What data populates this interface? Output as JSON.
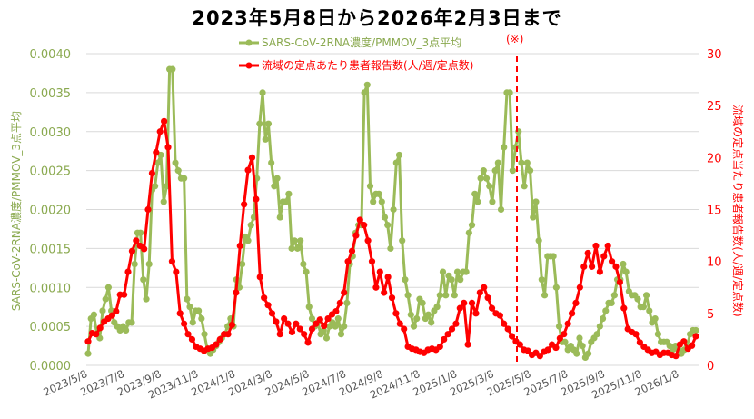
{
  "title": "2023年5月8日から2026年2月3日まで",
  "note": "(※)",
  "legend": {
    "series1": "SARS-CoV-2RNA濃度/PMMOV_3点平均",
    "series2": "流域の定点あたり患者報告数(人/週/定点数)"
  },
  "colors": {
    "series1": "#9bbb59",
    "series2": "#ff0000",
    "grid": "#d9d9d9"
  },
  "chart_data": {
    "type": "line",
    "title": "2023年5月8日から2026年2月3日まで",
    "xlabel": "",
    "ylabel": "SARS-CoV-2RNA濃度/PMMOV_3点平均",
    "ylabel_right": "流域の定点当たり患者報告数(人/週/定点数)",
    "ylim": [
      0,
      0.004
    ],
    "ylim_right": [
      0,
      30
    ],
    "yticks": [
      "0.0000",
      "0.0005",
      "0.0010",
      "0.0015",
      "0.0020",
      "0.0025",
      "0.0030",
      "0.0035",
      "0.0040"
    ],
    "yticks_right": [
      "0",
      "5",
      "10",
      "15",
      "20",
      "25",
      "30"
    ],
    "grid": true,
    "legend_position": "top",
    "x_ticks": [
      "2023/5/8",
      "2023/7/8",
      "2023/9/8",
      "2023/11/8",
      "2024/1/8",
      "2024/3/8",
      "2024/5/8",
      "2024/7/8",
      "2024/9/8",
      "2024/11/8",
      "2025/1/8",
      "2025/3/8",
      "2025/5/8",
      "2025/7/8",
      "2025/9/8",
      "2025/11/8",
      "2026/1/8"
    ],
    "vertical_marker": {
      "label": "(※)",
      "position": "2025/4 (approx.)",
      "style": "red dashed"
    },
    "series": [
      {
        "name": "SARS-CoV-2RNA濃度/PMMOV_3点平均",
        "axis": "left",
        "values": [
          0.00015,
          0.0006,
          0.00065,
          0.0004,
          0.00035,
          0.0007,
          0.00085,
          0.001,
          0.0007,
          0.00055,
          0.0005,
          0.00045,
          0.0005,
          0.00045,
          0.00055,
          0.00055,
          0.0013,
          0.0017,
          0.0017,
          0.0011,
          0.00085,
          0.0013,
          0.00225,
          0.0023,
          0.0026,
          0.0027,
          0.0021,
          0.0023,
          0.0038,
          0.0038,
          0.0026,
          0.0025,
          0.0024,
          0.0024,
          0.00085,
          0.00075,
          0.00055,
          0.0007,
          0.0007,
          0.0006,
          0.0004,
          0.0002,
          0.00015,
          0.0002,
          0.00025,
          0.0003,
          0.00035,
          0.0004,
          0.0005,
          0.0006,
          0.0005,
          0.0011,
          0.001,
          0.0013,
          0.00165,
          0.0016,
          0.0018,
          0.0019,
          0.0024,
          0.0031,
          0.0035,
          0.0029,
          0.0031,
          0.0026,
          0.0023,
          0.0024,
          0.0019,
          0.0021,
          0.0021,
          0.0022,
          0.0015,
          0.0016,
          0.0015,
          0.0016,
          0.0013,
          0.0012,
          0.00075,
          0.0006,
          0.0005,
          0.00055,
          0.0004,
          0.00045,
          0.00035,
          0.0005,
          0.00055,
          0.0005,
          0.0006,
          0.0004,
          0.0005,
          0.0008,
          0.0013,
          0.0014,
          0.0017,
          0.0018,
          0.0018,
          0.0035,
          0.0036,
          0.0023,
          0.0021,
          0.0022,
          0.0022,
          0.0021,
          0.0019,
          0.0018,
          0.0015,
          0.002,
          0.0026,
          0.0027,
          0.0016,
          0.0011,
          0.0009,
          0.00065,
          0.0005,
          0.0006,
          0.00085,
          0.0008,
          0.0006,
          0.00065,
          0.00055,
          0.0007,
          0.00075,
          0.0009,
          0.0012,
          0.0009,
          0.00115,
          0.0011,
          0.0009,
          0.0012,
          0.0011,
          0.0012,
          0.0012,
          0.0017,
          0.0018,
          0.0022,
          0.0021,
          0.0024,
          0.0025,
          0.0024,
          0.0023,
          0.0021,
          0.0025,
          0.0026,
          0.002,
          0.0028,
          0.0035,
          0.0035,
          0.0025,
          0.0028,
          0.003,
          0.0026,
          0.0023,
          0.0026,
          0.0025,
          0.0019,
          0.0021,
          0.0016,
          0.0011,
          0.0009,
          0.0014,
          0.0014,
          0.0014,
          0.001,
          0.0005,
          0.0003,
          0.0003,
          0.0002,
          0.00025,
          0.0002,
          0.00015,
          0.00035,
          0.00025,
          0.0001,
          0.00015,
          0.0003,
          0.00035,
          0.0004,
          0.0005,
          0.0006,
          0.0007,
          0.0008,
          0.0008,
          0.0009,
          0.0011,
          0.0011,
          0.0013,
          0.0012,
          0.00095,
          0.0009,
          0.0009,
          0.00085,
          0.00075,
          0.00075,
          0.0009,
          0.0007,
          0.00055,
          0.0006,
          0.0004,
          0.0003,
          0.0003,
          0.0003,
          0.00025,
          0.0002,
          0.00025,
          0.0002,
          0.00015,
          0.0002,
          0.00025,
          0.0004,
          0.00045,
          0.00045
        ]
      },
      {
        "name": "流域の定点あたり患者報告数(人/週/定点数)",
        "axis": "right",
        "values": [
          2.3,
          3.1,
          3.0,
          3.6,
          4.2,
          4.5,
          4.8,
          5.2,
          6.8,
          6.8,
          9.0,
          11.0,
          12.0,
          11.5,
          11.2,
          15.0,
          18.5,
          20.5,
          22.5,
          23.5,
          21.0,
          10.0,
          9.0,
          5.0,
          4.0,
          3.0,
          2.5,
          1.8,
          1.6,
          1.4,
          1.6,
          1.7,
          2.0,
          2.5,
          3.0,
          3.0,
          3.9,
          7.0,
          11.5,
          15.5,
          18.8,
          20.0,
          16.0,
          8.5,
          6.5,
          5.8,
          5.0,
          4.2,
          3.0,
          4.5,
          4.0,
          3.2,
          4.0,
          3.5,
          3.0,
          2.2,
          3.5,
          4.0,
          4.4,
          3.8,
          4.5,
          4.9,
          5.2,
          6.0,
          7.0,
          10.0,
          11.0,
          12.5,
          14.0,
          13.5,
          12.0,
          10.0,
          7.5,
          9.0,
          7.0,
          8.5,
          6.5,
          5.0,
          4.0,
          3.5,
          1.8,
          1.6,
          1.5,
          1.3,
          1.2,
          1.5,
          1.6,
          1.5,
          1.8,
          2.5,
          3.0,
          3.5,
          4.0,
          5.5,
          6.0,
          2.0,
          6.0,
          5.0,
          7.0,
          7.5,
          6.5,
          5.5,
          5.0,
          4.8,
          4.0,
          3.5,
          2.8,
          2.3,
          2.0,
          1.5,
          1.4,
          1.0,
          1.2,
          0.9,
          1.3,
          1.5,
          2.0,
          1.7,
          2.6,
          3.0,
          4.0,
          5.0,
          6.0,
          7.5,
          9.5,
          10.8,
          9.5,
          11.5,
          9.0,
          10.5,
          11.5,
          10.0,
          9.5,
          8.0,
          5.5,
          3.5,
          3.2,
          3.0,
          2.2,
          1.8,
          1.5,
          1.2,
          1.3,
          1.0,
          1.2,
          1.2,
          1.0,
          0.9,
          2.0,
          2.3,
          1.6,
          1.9,
          2.8
        ]
      }
    ]
  }
}
